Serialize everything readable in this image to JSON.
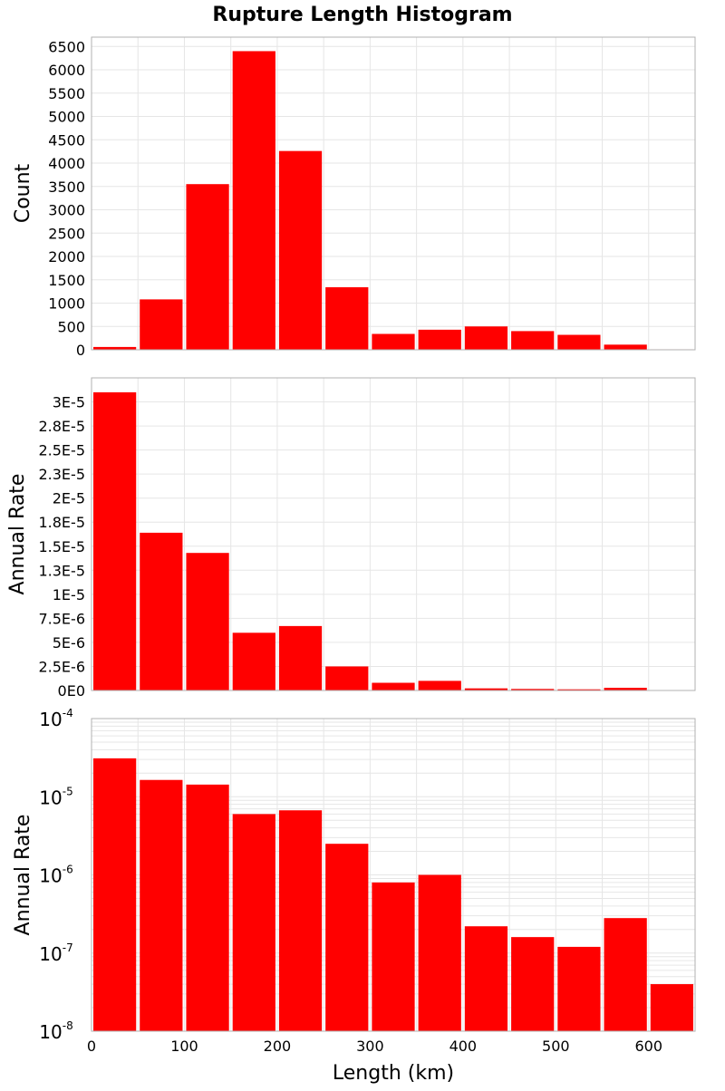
{
  "colors": {
    "bar": "#ff0000",
    "grid": "#e6e6e6",
    "frame": "#b0b0b0"
  },
  "chart_data": {
    "type": "bar",
    "title": "Rupture Length Histogram",
    "xlabel": "Length (km)",
    "xlim": [
      0,
      650
    ],
    "bin_width": 50,
    "bin_starts": [
      0,
      50,
      100,
      150,
      200,
      250,
      300,
      350,
      400,
      450,
      500,
      550,
      600
    ],
    "x_ticks": [
      "0",
      "100",
      "200",
      "300",
      "400",
      "500",
      "600"
    ],
    "grid": true,
    "panels": [
      {
        "ylabel": "Count",
        "scale": "linear",
        "ylim": [
          0,
          6700
        ],
        "y_ticks": [
          "0",
          "500",
          "1000",
          "1500",
          "2000",
          "2500",
          "3000",
          "3500",
          "4000",
          "4500",
          "5000",
          "5500",
          "6000",
          "6500"
        ],
        "values": [
          60,
          1080,
          3550,
          6400,
          4260,
          1340,
          340,
          430,
          500,
          400,
          320,
          110,
          10
        ]
      },
      {
        "ylabel": "Annual Rate",
        "scale": "linear",
        "ylim": [
          0,
          3.25e-05
        ],
        "y_ticks": [
          "0E0",
          "2.5E-6",
          "5E-6",
          "7.5E-6",
          "1E-5",
          "1.3E-5",
          "1.5E-5",
          "1.8E-5",
          "2E-5",
          "2.3E-5",
          "2.5E-5",
          "2.8E-5",
          "3E-5"
        ],
        "values": [
          3.1e-05,
          1.64e-05,
          1.43e-05,
          6e-06,
          6.7e-06,
          2.5e-06,
          8e-07,
          1e-06,
          2.2e-07,
          1.6e-07,
          1.2e-07,
          2.8e-07,
          4e-08
        ]
      },
      {
        "ylabel": "Annual Rate",
        "scale": "log",
        "ylim": [
          1e-08,
          0.0001
        ],
        "y_ticks": [
          {
            "base": "10",
            "exp": "-8"
          },
          {
            "base": "10",
            "exp": "-7"
          },
          {
            "base": "10",
            "exp": "-6"
          },
          {
            "base": "10",
            "exp": "-5"
          },
          {
            "base": "10",
            "exp": "-4"
          }
        ],
        "values": [
          3.1e-05,
          1.64e-05,
          1.43e-05,
          6e-06,
          6.7e-06,
          2.5e-06,
          8e-07,
          1e-06,
          2.2e-07,
          1.6e-07,
          1.2e-07,
          2.8e-07,
          4e-08
        ]
      }
    ]
  }
}
